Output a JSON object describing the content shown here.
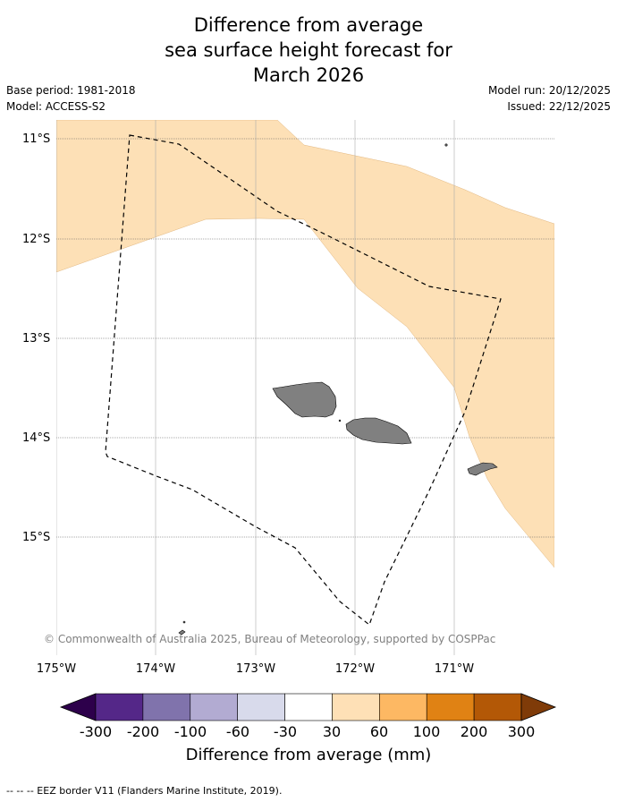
{
  "title": {
    "line1": "Difference from average",
    "line2": "sea surface height forecast for",
    "line3": "March 2026"
  },
  "meta": {
    "base_period": "Base period: 1981-2018",
    "model": "Model: ACCESS-S2",
    "model_run": "Model run: 20/12/2025",
    "issued": "Issued: 22/12/2025"
  },
  "map": {
    "lat_labels": [
      "11°S",
      "12°S",
      "13°S",
      "14°S",
      "15°S"
    ],
    "lon_labels": [
      "175°W",
      "174°W",
      "173°W",
      "172°W",
      "171°W"
    ],
    "copyright": "© Commonwealth of Australia 2025, Bureau of Meteorology, supported by COSPPac",
    "anomaly_color": "#fde0b6",
    "land_color": "#808080"
  },
  "colorbar": {
    "title": "Difference from average (mm)",
    "tick_labels": [
      "-300",
      "-200",
      "-100",
      "-60",
      "-30",
      "30",
      "60",
      "100",
      "200",
      "300"
    ],
    "colors": [
      "#2d004b",
      "#542788",
      "#8073ac",
      "#b2abd2",
      "#d8daeb",
      "#ffffff",
      "#fee0b6",
      "#fdb863",
      "#e08214",
      "#b35806",
      "#7f3b08"
    ]
  },
  "footer": {
    "legend": "--  --  -- EEZ border V11 (Flanders Marine Institute, 2019)."
  }
}
